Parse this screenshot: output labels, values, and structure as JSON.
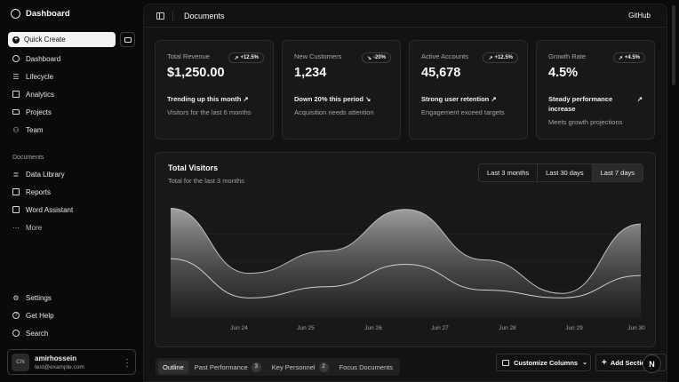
{
  "app": {
    "title": "Dashboard"
  },
  "sidebar": {
    "quick_create": "Quick Create",
    "primary": [
      {
        "label": "Dashboard",
        "icon": "gauge-icon"
      },
      {
        "label": "Lifecycle",
        "icon": "list-icon"
      },
      {
        "label": "Analytics",
        "icon": "chart-bar-icon"
      },
      {
        "label": "Projects",
        "icon": "folder-icon"
      },
      {
        "label": "Team",
        "icon": "users-icon"
      }
    ],
    "documents_label": "Documents",
    "documents": [
      {
        "label": "Data Library",
        "icon": "database-icon"
      },
      {
        "label": "Reports",
        "icon": "report-icon"
      },
      {
        "label": "Word Assistant",
        "icon": "file-word-icon"
      },
      {
        "label": "More",
        "icon": "dots-icon"
      }
    ],
    "secondary": [
      {
        "label": "Settings",
        "icon": "gear-icon"
      },
      {
        "label": "Get Help",
        "icon": "help-icon"
      },
      {
        "label": "Search",
        "icon": "search-icon"
      }
    ],
    "user": {
      "initials": "CN",
      "name": "amirhossein",
      "email": "test@example.com"
    }
  },
  "header": {
    "title": "Documents",
    "github": "GitHub"
  },
  "cards": [
    {
      "label": "Total Revenue",
      "badge": "+12.5%",
      "badge_dir": "up",
      "value": "$1,250.00",
      "trend": "Trending up this month",
      "trend_dir": "up",
      "sub": "Visitors for the last 6 months"
    },
    {
      "label": "New Customers",
      "badge": "-20%",
      "badge_dir": "down",
      "value": "1,234",
      "trend": "Down 20% this period",
      "trend_dir": "down",
      "sub": "Acquisition needs attention"
    },
    {
      "label": "Active Accounts",
      "badge": "+12.5%",
      "badge_dir": "up",
      "value": "45,678",
      "trend": "Strong user retention",
      "trend_dir": "up",
      "sub": "Engagement exceed targets"
    },
    {
      "label": "Growth Rate",
      "badge": "+4.5%",
      "badge_dir": "up",
      "value": "4.5%",
      "trend": "Steady performance increase",
      "trend_dir": "up",
      "sub": "Meets growth projections"
    }
  ],
  "chart": {
    "title": "Total Visitors",
    "subtitle": "Total for the last 3 months",
    "ranges": [
      "Last 3 months",
      "Last 30 days",
      "Last 7 days"
    ],
    "selected_range": "Last 7 days"
  },
  "chart_data": {
    "type": "area",
    "x": [
      "Jun 24",
      "Jun 25",
      "Jun 26",
      "Jun 27",
      "Jun 28",
      "Jun 29",
      "Jun 30"
    ],
    "series": [
      {
        "values": [
          98,
          40,
          60,
          97,
          52,
          22,
          84
        ]
      },
      {
        "values": [
          53,
          18,
          28,
          48,
          25,
          18,
          38
        ]
      }
    ],
    "ylim": [
      0,
      100
    ],
    "grid": true,
    "colors": [
      "#9a9a9a",
      "#5a5a5a"
    ]
  },
  "tabs": [
    {
      "label": "Outline",
      "count": null
    },
    {
      "label": "Past Performance",
      "count": "3"
    },
    {
      "label": "Key Personnel",
      "count": "2"
    },
    {
      "label": "Focus Documents",
      "count": null
    }
  ],
  "actions": {
    "customize": "Customize Columns",
    "add_section": "Add Section"
  },
  "floating_badge": "N"
}
